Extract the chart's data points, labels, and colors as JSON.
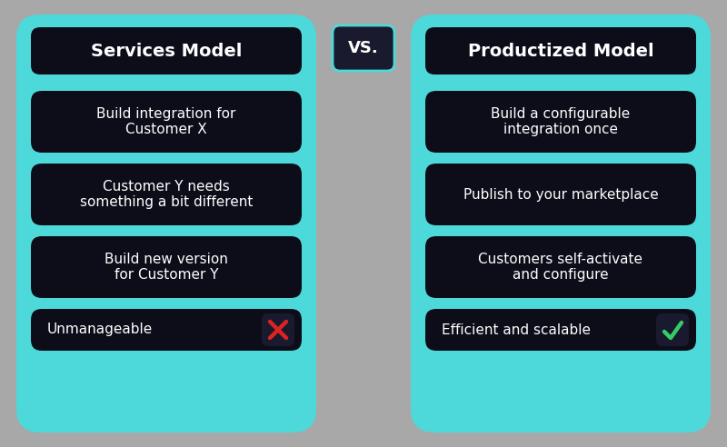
{
  "bg_color": "#a8a8a8",
  "panel_color": "#4dd9d9",
  "box_color": "#0d0d1a",
  "text_color": "#ffffff",
  "vs_box_color": "#1a1a2e",
  "vs_border_color": "#4dd9d9",
  "left_title": "Services Model",
  "right_title": "Productized Model",
  "vs_text": "VS.",
  "left_items": [
    "Build integration for\nCustomer X",
    "Customer Y needs\nsomething a bit different",
    "Build new version\nfor Customer Y",
    "Unmanageable"
  ],
  "right_items": [
    "Build a configurable\nintegration once",
    "Publish to your marketplace",
    "Customers self-activate\nand configure",
    "Efficient and scalable"
  ],
  "cross_color": "#dd2222",
  "check_color": "#33cc66",
  "icon_bg_color": "#1a1a2e"
}
